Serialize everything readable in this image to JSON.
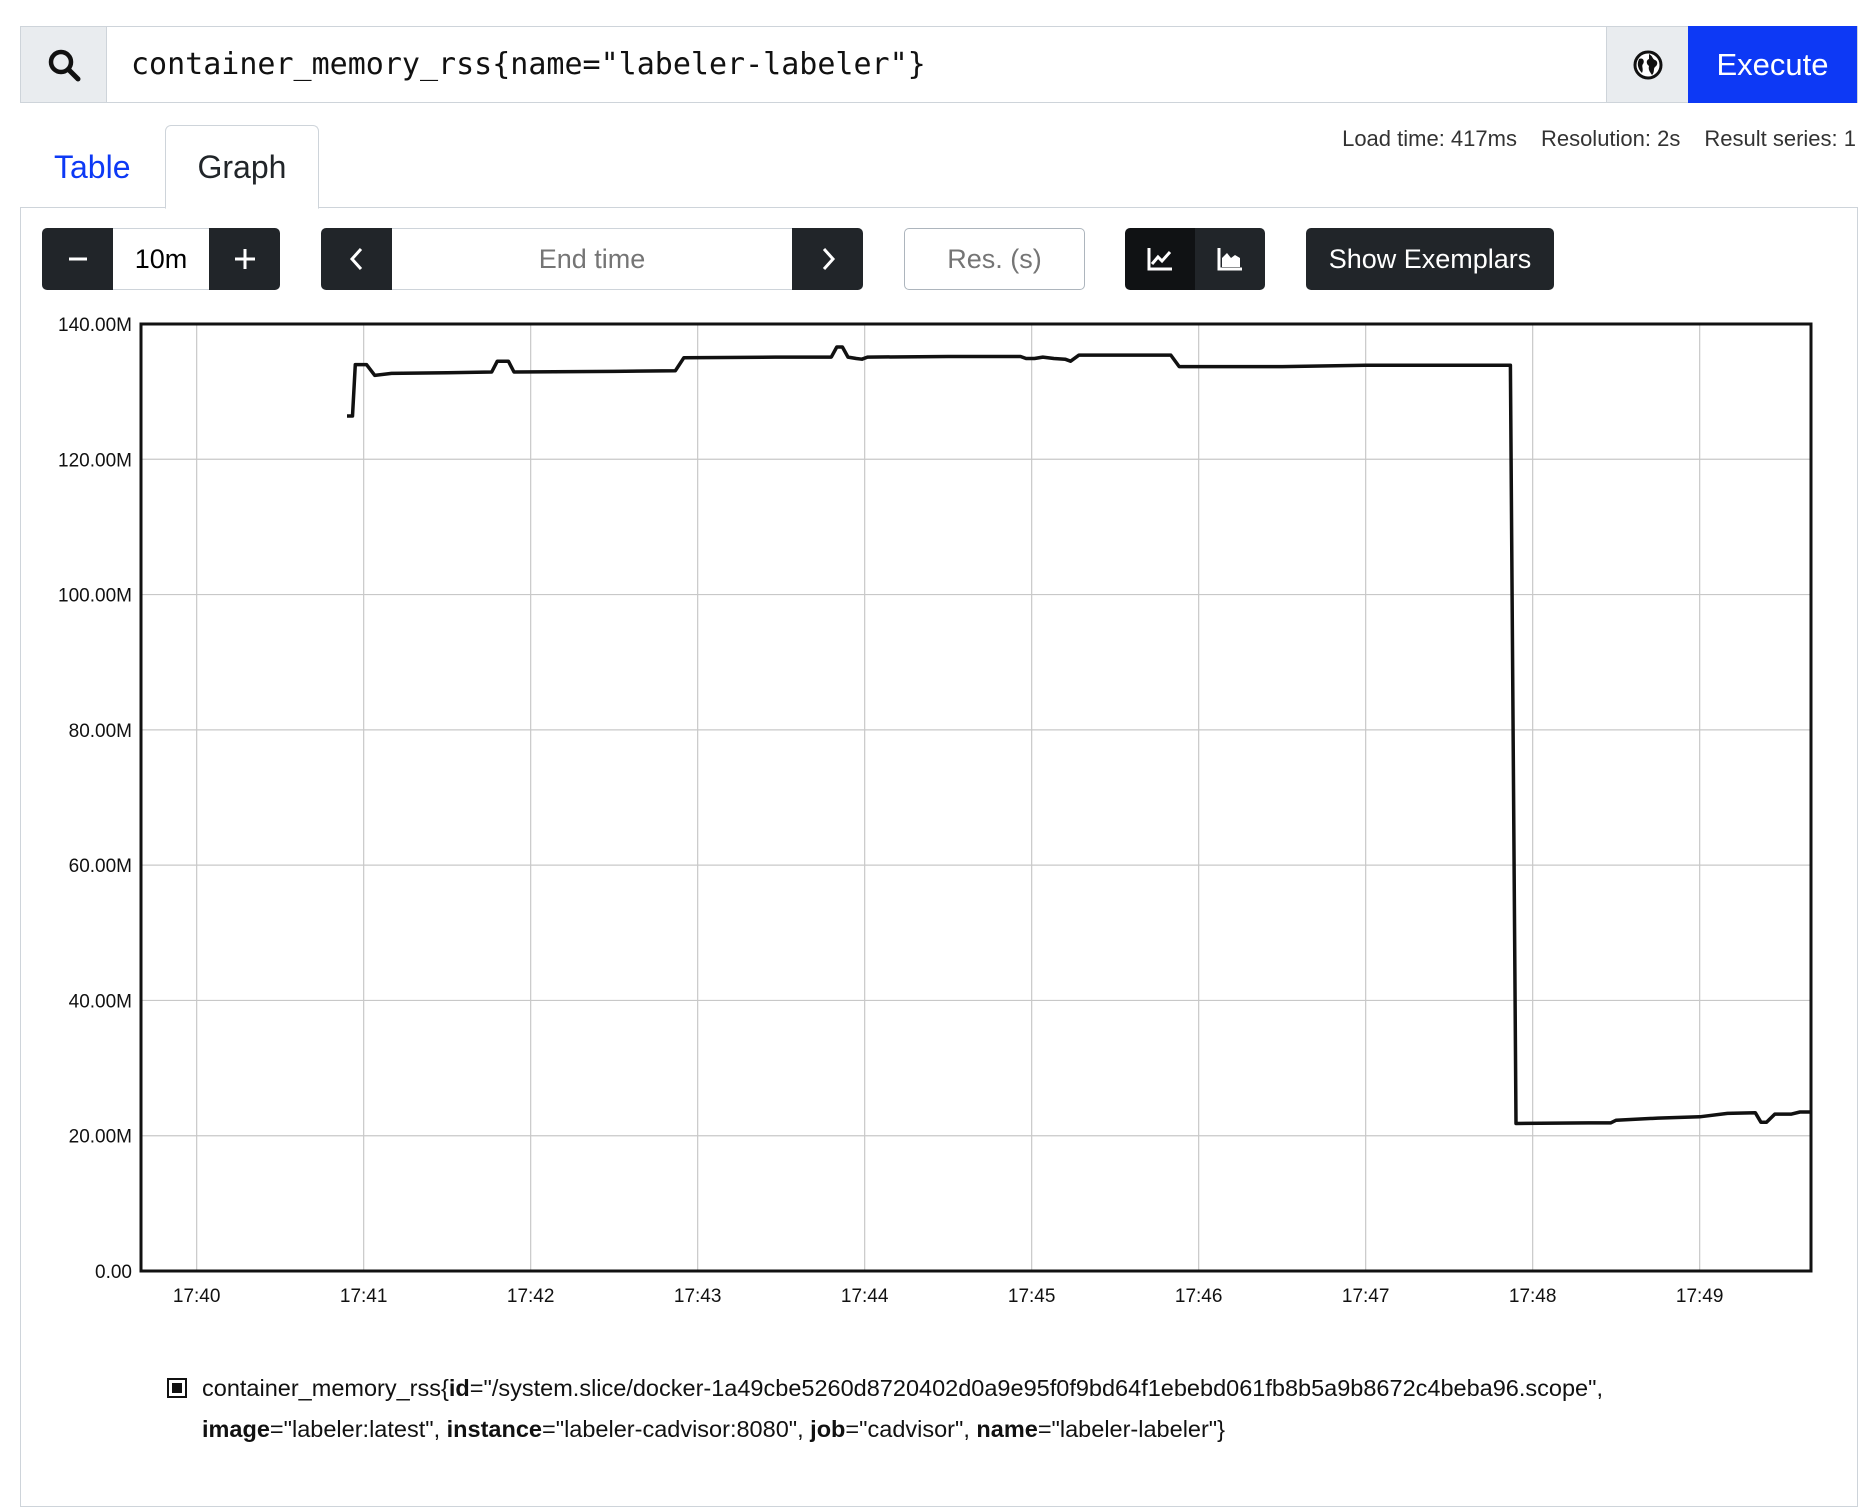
{
  "query": {
    "expression": "container_memory_rss{name=\"labeler-labeler\"}",
    "execute_label": "Execute"
  },
  "tabs": [
    {
      "label": "Table",
      "active": false
    },
    {
      "label": "Graph",
      "active": true
    }
  ],
  "stats": {
    "load_time": "Load time: 417ms",
    "resolution": "Resolution: 2s",
    "result_series": "Result series: 1"
  },
  "controls": {
    "range_value": "10m",
    "end_time_placeholder": "End time",
    "resolution_placeholder": "Res. (s)",
    "show_exemplars_label": "Show Exemplars",
    "stacked": false
  },
  "chart_data": {
    "type": "line",
    "title": "",
    "xlabel": "",
    "ylabel": "",
    "x_ticks": [
      "17:40",
      "17:41",
      "17:42",
      "17:43",
      "17:44",
      "17:45",
      "17:46",
      "17:47",
      "17:48",
      "17:49"
    ],
    "y_ticks": [
      "0.00",
      "20.00M",
      "40.00M",
      "60.00M",
      "80.00M",
      "100.00M",
      "120.00M",
      "140.00M"
    ],
    "xlim": [
      "17:39:40",
      "17:49:40"
    ],
    "ylim": [
      0,
      140000000
    ],
    "grid": true,
    "line_color": "#111111",
    "series": [
      {
        "values": [
          [
            "17:40:54",
            126400000
          ],
          [
            "17:40:56",
            126400000
          ],
          [
            "17:40:57",
            134000000
          ],
          [
            "17:41:01",
            134000000
          ],
          [
            "17:41:04",
            132400000
          ],
          [
            "17:41:10",
            132700000
          ],
          [
            "17:41:30",
            132800000
          ],
          [
            "17:41:46",
            132900000
          ],
          [
            "17:41:48",
            134500000
          ],
          [
            "17:41:52",
            134500000
          ],
          [
            "17:41:54",
            132900000
          ],
          [
            "17:42:30",
            133000000
          ],
          [
            "17:42:52",
            133100000
          ],
          [
            "17:42:55",
            135000000
          ],
          [
            "17:43:28",
            135100000
          ],
          [
            "17:43:48",
            135100000
          ],
          [
            "17:43:50",
            136600000
          ],
          [
            "17:43:52",
            136600000
          ],
          [
            "17:43:54",
            135100000
          ],
          [
            "17:43:57",
            134900000
          ],
          [
            "17:43:59",
            134800000
          ],
          [
            "17:44:01",
            135100000
          ],
          [
            "17:44:30",
            135200000
          ],
          [
            "17:44:56",
            135200000
          ],
          [
            "17:44:58",
            134900000
          ],
          [
            "17:45:01",
            134900000
          ],
          [
            "17:45:04",
            135100000
          ],
          [
            "17:45:08",
            134900000
          ],
          [
            "17:45:12",
            134800000
          ],
          [
            "17:45:14",
            134500000
          ],
          [
            "17:45:17",
            135400000
          ],
          [
            "17:45:50",
            135400000
          ],
          [
            "17:45:53",
            133700000
          ],
          [
            "17:46:30",
            133700000
          ],
          [
            "17:47:00",
            133900000
          ],
          [
            "17:47:52",
            133900000
          ],
          [
            "17:47:54",
            21800000
          ],
          [
            "17:48:20",
            21900000
          ],
          [
            "17:48:28",
            21900000
          ],
          [
            "17:48:30",
            22300000
          ],
          [
            "17:48:45",
            22600000
          ],
          [
            "17:49:00",
            22800000
          ],
          [
            "17:49:10",
            23300000
          ],
          [
            "17:49:20",
            23400000
          ],
          [
            "17:49:22",
            22000000
          ],
          [
            "17:49:24",
            22000000
          ],
          [
            "17:49:27",
            23200000
          ],
          [
            "17:49:33",
            23200000
          ],
          [
            "17:49:36",
            23500000
          ],
          [
            "17:49:40",
            23500000
          ]
        ]
      }
    ]
  },
  "legend": {
    "metric": "container_memory_rss",
    "labels": [
      {
        "key": "id",
        "value": "\"/system.slice/docker-1a49cbe5260d8720402d0a9e95f0f9bd64f1ebebd061fb8b5a9b8672c4beba96.scope\""
      },
      {
        "key": "image",
        "value": "\"labeler:latest\""
      },
      {
        "key": "instance",
        "value": "\"labeler-cadvisor:8080\""
      },
      {
        "key": "job",
        "value": "\"cadvisor\""
      },
      {
        "key": "name",
        "value": "\"labeler-labeler\""
      }
    ]
  },
  "icons": {
    "search": "search-icon",
    "globe": "globe-icon",
    "minus": "minus-icon",
    "plus": "plus-icon",
    "chevron_left": "chevron-left-icon",
    "chevron_right": "chevron-right-icon",
    "line_chart": "line-chart-icon",
    "area_chart": "stacked-area-chart-icon"
  },
  "colors": {
    "accent": "#0d39f5",
    "dark_button": "#212529"
  }
}
